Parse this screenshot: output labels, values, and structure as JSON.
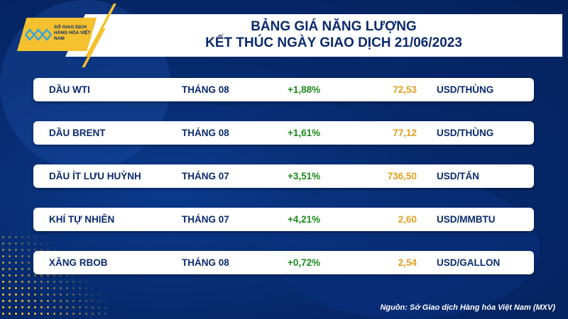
{
  "header": {
    "title_line1": "BẢNG GIÁ NĂNG LƯỢNG",
    "title_line2": "KẾT THÚC NGÀY GIAO DỊCH 21/06/2023"
  },
  "logo": {
    "text": "SỞ GIAO DỊCH HÀNG HÓA VIỆT NAM"
  },
  "rows": [
    {
      "name": "DẦU WTI",
      "month": "THÁNG 08",
      "change": "+1,88%",
      "price": "72,53",
      "unit": "USD/THÙNG"
    },
    {
      "name": "DẦU BRENT",
      "month": "THÁNG 08",
      "change": "+1,61%",
      "price": "77,12",
      "unit": "USD/THÙNG"
    },
    {
      "name": "DẦU ÍT LƯU HUỲNH",
      "month": "THÁNG 07",
      "change": "+3,51%",
      "price": "736,50",
      "unit": "USD/TẤN"
    },
    {
      "name": "KHÍ TỰ NHIÊN",
      "month": "THÁNG 07",
      "change": "+4,21%",
      "price": "2,60",
      "unit": "USD/MMBTU"
    },
    {
      "name": "XĂNG RBOB",
      "month": "THÁNG 08",
      "change": "+0,72%",
      "price": "2,54",
      "unit": "USD/GALLON"
    }
  ],
  "source": "Nguồn: Sở Giao dịch Hàng hóa Việt Nam (MXV)",
  "colors": {
    "navy": "#0a2a6e",
    "green": "#1a8a1a",
    "gold": "#e0a020",
    "yellow": "#f5c12e"
  }
}
